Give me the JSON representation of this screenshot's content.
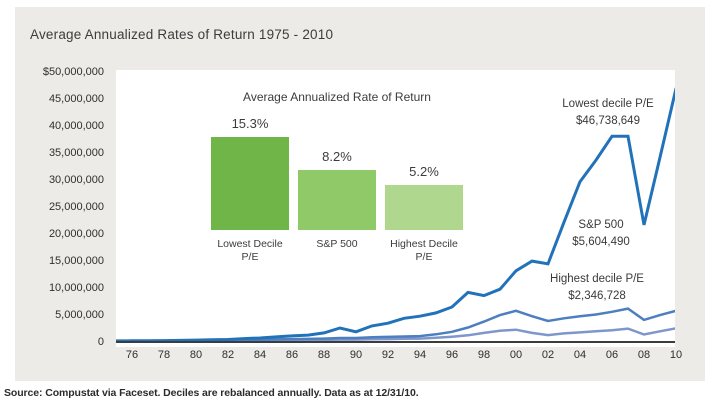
{
  "page": {
    "title": "Average Annualized Rates of Return 1975 - 2010",
    "source_note": "Source: Compustat via Faceset. Deciles are rebalanced annually. Data as at 12/31/10."
  },
  "colors": {
    "panel_background": "#edebe8",
    "plot_background": "#ffffff",
    "axis": "#3c3c3c",
    "text": "#3c3c3c"
  },
  "chart_data": [
    {
      "type": "line",
      "title": "Average Annualized Rates of Return 1975 - 2010",
      "xlabel": "",
      "ylabel": "",
      "x_range": [
        1975,
        2010
      ],
      "ylim": [
        0,
        50000000
      ],
      "grid": false,
      "legend_position": "inline-annotations",
      "x": [
        1975,
        1976,
        1977,
        1978,
        1979,
        1980,
        1981,
        1982,
        1983,
        1984,
        1985,
        1986,
        1987,
        1988,
        1989,
        1990,
        1991,
        1992,
        1993,
        1994,
        1995,
        1996,
        1997,
        1998,
        1999,
        2000,
        2001,
        2002,
        2003,
        2004,
        2005,
        2006,
        2007,
        2008,
        2009,
        2010
      ],
      "x_tick_labels": [
        "76",
        "78",
        "80",
        "82",
        "84",
        "86",
        "88",
        "90",
        "92",
        "94",
        "96",
        "98",
        "00",
        "02",
        "04",
        "06",
        "08",
        "10"
      ],
      "y_tick_labels": [
        "$50,000,000",
        "45,000,000",
        "40,000,000",
        "35,000,000",
        "30,000,000",
        "25,000,000",
        "20,000,000",
        "15,000,000",
        "10,000,000",
        "5,000,000",
        "0"
      ],
      "series": [
        {
          "name": "Lowest decile P/E",
          "final_value": 46738649,
          "final_label": "$46,738,649",
          "color": "#2272b9",
          "stroke_width": 3,
          "values_millions": [
            0.01,
            0.03,
            0.05,
            0.08,
            0.12,
            0.16,
            0.22,
            0.28,
            0.45,
            0.55,
            0.75,
            0.95,
            1.1,
            1.5,
            2.4,
            1.7,
            2.8,
            3.3,
            4.2,
            4.6,
            5.2,
            6.3,
            9.0,
            8.4,
            9.6,
            13.0,
            14.8,
            14.3,
            22.0,
            29.5,
            33.5,
            37.9,
            37.9,
            21.5,
            34.0,
            46.74
          ]
        },
        {
          "name": "S&P 500",
          "final_value": 5604490,
          "final_label": "$5,604,490",
          "color": "#4d7fc0",
          "stroke_width": 2.5,
          "values_millions": [
            0.01,
            0.02,
            0.03,
            0.05,
            0.08,
            0.11,
            0.12,
            0.15,
            0.2,
            0.22,
            0.3,
            0.36,
            0.38,
            0.45,
            0.55,
            0.55,
            0.7,
            0.76,
            0.84,
            0.9,
            1.25,
            1.7,
            2.5,
            3.6,
            4.8,
            5.6,
            4.6,
            3.7,
            4.2,
            4.6,
            4.9,
            5.4,
            6.0,
            3.9,
            4.8,
            5.6
          ]
        },
        {
          "name": "Highest decile P/E",
          "final_value": 2346728,
          "final_label": "$2,346,728",
          "color": "#7e97cb",
          "stroke_width": 2.5,
          "values_millions": [
            0.01,
            0.01,
            0.02,
            0.03,
            0.04,
            0.06,
            0.06,
            0.08,
            0.1,
            0.11,
            0.15,
            0.18,
            0.18,
            0.21,
            0.26,
            0.25,
            0.33,
            0.36,
            0.4,
            0.45,
            0.6,
            0.8,
            1.05,
            1.5,
            1.9,
            2.1,
            1.5,
            1.1,
            1.4,
            1.6,
            1.8,
            2.0,
            2.3,
            1.2,
            1.8,
            2.35
          ]
        }
      ],
      "annotations": [
        {
          "line1": "Lowest decile P/E",
          "line2": "$46,738,649"
        },
        {
          "line1": "S&P 500",
          "line2": "$5,604,490"
        },
        {
          "line1": "Highest decile P/E",
          "line2": "$2,346,728"
        }
      ]
    },
    {
      "type": "bar",
      "title": "Average Annualized Rate of Return",
      "categories": [
        "Lowest Decile P/E",
        "S&P 500",
        "Highest Decile P/E"
      ],
      "cat_lines": [
        [
          "Lowest Decile",
          "P/E"
        ],
        [
          "S&P 500",
          ""
        ],
        [
          "Highest Decile",
          "P/E"
        ]
      ],
      "values": [
        15.3,
        8.2,
        5.2
      ],
      "value_labels": [
        "15.3%",
        "8.2%",
        "5.2%"
      ],
      "colors": [
        "#6fb547",
        "#90c968",
        "#b0d78e"
      ],
      "unit": "%"
    }
  ]
}
